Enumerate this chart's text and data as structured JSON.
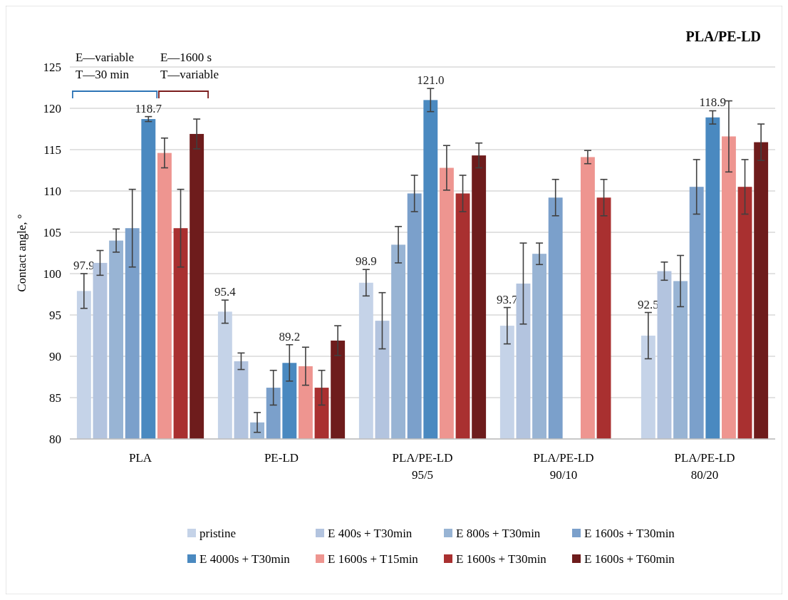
{
  "chart_data": {
    "type": "bar",
    "title": "PLA/PE-LD",
    "ylabel": "Contact angle, °",
    "categories": [
      "PLA",
      "PE-LD",
      "PLA/PE-LD\n95/5",
      "PLA/PE-LD\n90/10",
      "PLA/PE-LD\n80/20"
    ],
    "series": [
      {
        "name": "pristine",
        "color": "#c5d3e8",
        "values": [
          97.9,
          95.4,
          98.9,
          93.7,
          92.5
        ],
        "errors": [
          2.1,
          1.4,
          1.6,
          2.2,
          2.8
        ],
        "value_labels": [
          "97.9",
          "95.4",
          "98.9",
          "93.7",
          "92.5"
        ]
      },
      {
        "name": "E 400s  + T30min",
        "color": "#b3c4df",
        "values": [
          101.3,
          89.4,
          94.3,
          98.8,
          100.3
        ],
        "errors": [
          1.5,
          1.0,
          3.4,
          4.9,
          1.1
        ]
      },
      {
        "name": "E 800s  + T30min",
        "color": "#98b4d4",
        "values": [
          104.0,
          82.0,
          103.5,
          102.4,
          99.1
        ],
        "errors": [
          1.4,
          1.2,
          2.2,
          1.3,
          3.1
        ]
      },
      {
        "name": "E 1600s  + T30min",
        "color": "#7ba0cb",
        "values": [
          105.5,
          86.2,
          109.7,
          109.2,
          110.5
        ],
        "errors": [
          4.7,
          2.1,
          2.2,
          2.2,
          3.3
        ]
      },
      {
        "name": "E 4000s  + T30min",
        "color": "#4a89c0",
        "values": [
          118.7,
          89.2,
          121.0,
          null,
          118.9
        ],
        "errors": [
          0.3,
          2.2,
          1.4,
          null,
          0.8
        ],
        "value_labels": [
          "118.7",
          "89.2",
          "121.0",
          null,
          "118.9"
        ]
      },
      {
        "name": "E 1600s  + T15min",
        "color": "#ee9590",
        "values": [
          114.6,
          88.8,
          112.8,
          114.1,
          116.6
        ],
        "errors": [
          1.8,
          2.3,
          2.7,
          0.8,
          4.3
        ]
      },
      {
        "name": "E 1600s  + T30min",
        "color": "#a93030",
        "values": [
          105.5,
          86.2,
          109.7,
          109.2,
          110.5
        ],
        "errors": [
          4.7,
          2.1,
          2.2,
          2.2,
          3.3
        ]
      },
      {
        "name": "E 1600s  + T60min",
        "color": "#6e1c1c",
        "values": [
          116.9,
          91.9,
          114.3,
          null,
          115.9
        ],
        "errors": [
          1.8,
          1.8,
          1.5,
          null,
          2.2
        ]
      }
    ],
    "ylim": [
      80,
      125
    ],
    "yticks": [
      80,
      85,
      90,
      95,
      100,
      105,
      110,
      115,
      120,
      125
    ],
    "grid": "y",
    "legend": "bottom",
    "annotations": [
      "E—variable",
      "T—30 min",
      "E—1600 s",
      "T—variable"
    ]
  }
}
